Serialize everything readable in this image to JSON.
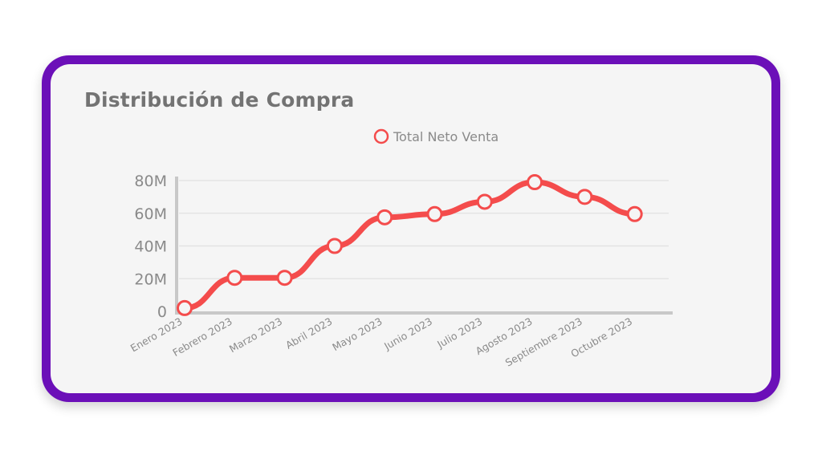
{
  "card": {
    "border_color": "#6b0fb8"
  },
  "chart_data": {
    "type": "line",
    "title": "Distribución de Compra",
    "categories": [
      "Enero 2023",
      "Febrero 2023",
      "Marzo 2023",
      "Abril 2023",
      "Mayo 2023",
      "Junio 2023",
      "Julio 2023",
      "Agosto 2023",
      "Septiembre 2023",
      "Octubre 2023"
    ],
    "series": [
      {
        "name": "Total Neto Venta",
        "color": "#f44c4c",
        "values": [
          2000000,
          20500000,
          20500000,
          40000000,
          57500000,
          59500000,
          67000000,
          79000000,
          70000000,
          59500000
        ]
      }
    ],
    "yticks": [
      "0",
      "20M",
      "40M",
      "60M",
      "80M"
    ],
    "ylim": [
      0,
      80000000
    ],
    "grid": true,
    "legend": "top-center"
  }
}
